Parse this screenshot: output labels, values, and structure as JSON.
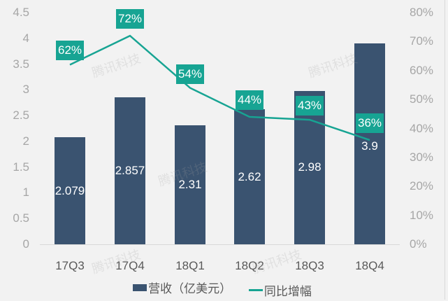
{
  "chart_data": {
    "type": "bar+line",
    "categories": [
      "17Q3",
      "17Q4",
      "18Q1",
      "18Q2",
      "18Q3",
      "18Q4"
    ],
    "series": [
      {
        "name": "营收（亿美元）",
        "type": "bar",
        "axis": "left",
        "values": [
          2.079,
          2.857,
          2.31,
          2.62,
          2.98,
          3.9
        ],
        "labels": [
          "2.079",
          "2.857",
          "2.31",
          "2.62",
          "2.98",
          "3.9"
        ],
        "color": "#3a5370"
      },
      {
        "name": "同比增幅",
        "type": "line",
        "axis": "right",
        "values": [
          62,
          72,
          54,
          44,
          43,
          36
        ],
        "labels": [
          "62%",
          "72%",
          "54%",
          "44%",
          "43%",
          "36%"
        ],
        "color": "#17a493"
      }
    ],
    "title": "",
    "xlabel": "",
    "ylabel": "",
    "ylim": [
      0,
      4.5
    ],
    "y2lim": [
      0,
      80
    ],
    "yticks": [
      "0",
      "0.5",
      "1",
      "1.5",
      "2",
      "2.5",
      "3",
      "3.5",
      "4",
      "4.5"
    ],
    "y2ticks": [
      "0%",
      "10%",
      "20%",
      "30%",
      "40%",
      "50%",
      "60%",
      "70%",
      "80%"
    ],
    "grid": false,
    "legend_position": "bottom"
  },
  "legend": {
    "bar_label": "营收（亿美元）",
    "line_label": "同比增幅"
  },
  "watermark": "腾讯科技"
}
